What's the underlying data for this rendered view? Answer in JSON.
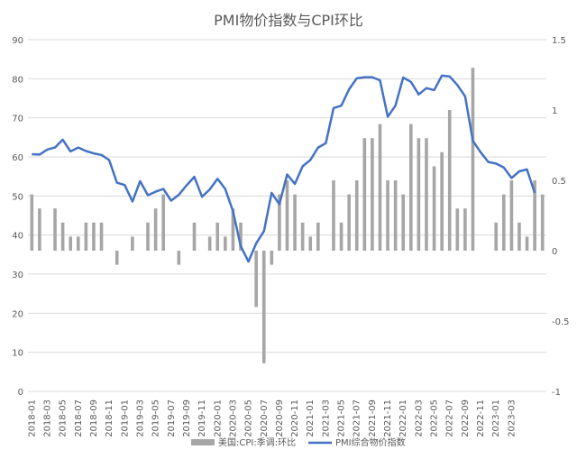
{
  "chart_data": {
    "type": "bar+line",
    "title": "PMI物价指数与CPI环比",
    "x_ticks": [
      "2018-01",
      "2018-03",
      "2018-05",
      "2018-07",
      "2018-09",
      "2018-11",
      "2019-01",
      "2019-03",
      "2019-05",
      "2019-07",
      "2019-09",
      "2019-11",
      "2020-01",
      "2020-03",
      "2020-05",
      "2020-07",
      "2020-09",
      "2020-11",
      "2021-01",
      "2021-03",
      "2021-05",
      "2021-07",
      "2021-09",
      "2021-11",
      "2022-01",
      "2022-03",
      "2022-05",
      "2022-07",
      "2022-09",
      "2022-11",
      "2023-01",
      "2023-03"
    ],
    "y_left": {
      "min": 0,
      "max": 90,
      "step": 10,
      "ticks": [
        "0",
        "10",
        "20",
        "30",
        "40",
        "50",
        "60",
        "70",
        "80",
        "90"
      ]
    },
    "y_right": {
      "min": -1,
      "max": 1.5,
      "ticks": [
        {
          "v": -1,
          "label": "-1"
        },
        {
          "v": -0.5,
          "label": "-0.5"
        },
        {
          "v": 0,
          "label": "0"
        },
        {
          "v": 0.5,
          "label": "0.5"
        },
        {
          "v": 1,
          "label": "1"
        },
        {
          "v": 1.5,
          "label": "1.5"
        }
      ]
    },
    "series": [
      {
        "name": "美国:CPI:季调:环比",
        "type": "bar",
        "axis": "right",
        "color": "#a6a6a6",
        "values": [
          0.4,
          0.3,
          0,
          0.3,
          0.2,
          0.1,
          0.1,
          0.2,
          0.2,
          0.2,
          0,
          -0.1,
          0,
          0.1,
          0,
          0.2,
          0.3,
          0.4,
          0,
          -0.1,
          0,
          0.2,
          0,
          0.1,
          0.2,
          0.1,
          0.3,
          0.2,
          0,
          -0.4,
          -0.8,
          -0.1,
          0.4,
          0.5,
          0.4,
          0.2,
          0.1,
          0.2,
          0,
          0.5,
          0.2,
          0.4,
          0.5,
          0.8,
          0.8,
          0.9,
          0.5,
          0.5,
          0.4,
          0.9,
          0.8,
          0.8,
          0.6,
          0.7,
          1.0,
          0.3,
          0.3,
          1.3,
          0,
          0,
          0.2,
          0.4,
          0.5,
          0.2,
          0.1,
          0.5,
          0.4
        ]
      },
      {
        "name": "PMI综合物价指数",
        "type": "line",
        "axis": "left",
        "color": "#4472c4",
        "values": [
          60.7,
          60.6,
          61.9,
          62.4,
          64.4,
          61.4,
          62.4,
          61.5,
          60.9,
          60.5,
          59.2,
          53.4,
          52.8,
          48.6,
          53.8,
          50.2,
          51.1,
          51.8,
          48.8,
          50.3,
          52.7,
          54.9,
          49.8,
          51.7,
          54.4,
          51.8,
          46.1,
          37.2,
          33.2,
          37.9,
          41.0,
          50.8,
          47.9,
          55.5,
          53.1,
          57.6,
          59.2,
          62.4,
          63.5,
          72.5,
          73.1,
          77.3,
          80.1,
          80.4,
          80.4,
          79.6,
          70.3,
          73.1,
          80.3,
          79.2,
          76.0,
          77.6,
          77.1,
          80.8,
          80.6,
          78.4,
          75.5,
          64.1,
          61.2,
          58.7,
          58.3,
          57.3,
          54.6,
          56.3,
          56.8,
          50.8
        ]
      }
    ],
    "legend_position": "bottom",
    "grid": "horizontal"
  }
}
